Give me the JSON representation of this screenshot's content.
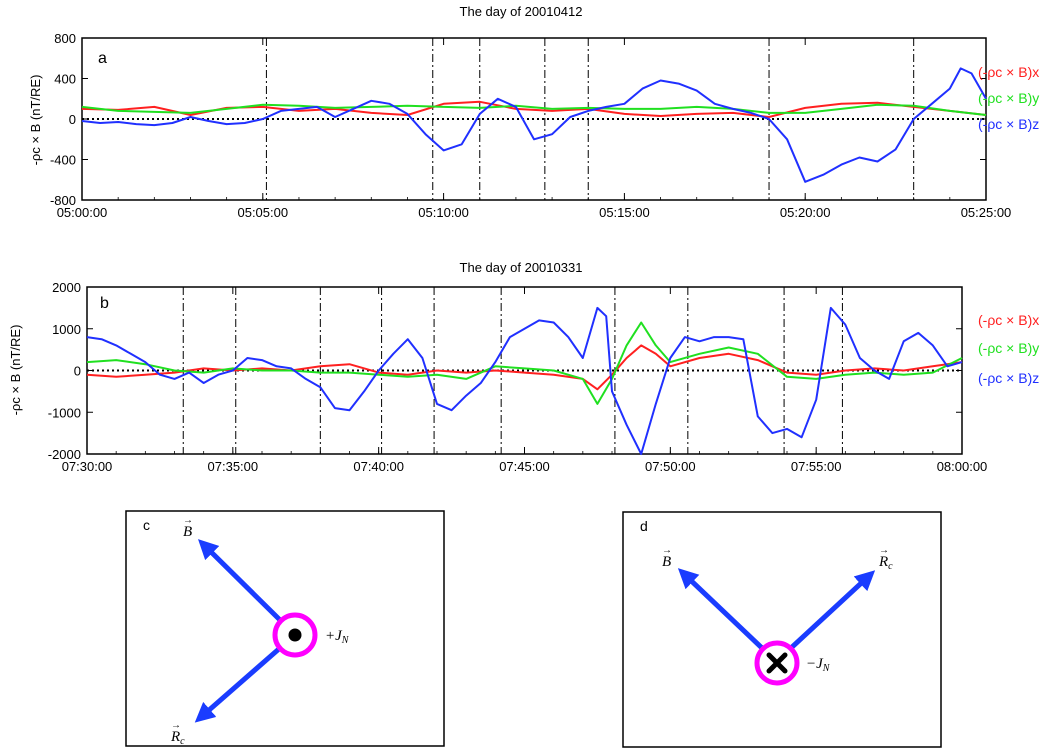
{
  "chart_data": [
    {
      "type": "line",
      "panel_label": "a",
      "title": "The day of 20010412",
      "ylabel": "-ρc × B (nT/RE)",
      "ylim": [
        -800,
        800
      ],
      "yticks": [
        "800",
        "400",
        "0",
        "-400",
        "-800"
      ],
      "ytick_values": [
        800,
        400,
        0,
        -400,
        -800
      ],
      "xlim_minutes": [
        0,
        25
      ],
      "xticks": [
        "05:00:00",
        "05:05:00",
        "05:10:00",
        "05:15:00",
        "05:20:00",
        "05:25:00"
      ],
      "xtick_minutes": [
        0,
        5,
        10,
        15,
        20,
        25
      ],
      "boundary_minutes": [
        5.1,
        9.7,
        11.0,
        12.8,
        14.0,
        19.0,
        23.0
      ],
      "zero_line": true,
      "legend_position": "right",
      "series": [
        {
          "name": "(-ρc × B)x",
          "color": "#ff2020",
          "x": [
            0,
            1,
            2,
            3,
            4,
            5,
            6,
            7,
            8,
            9,
            10,
            11,
            12,
            13,
            14,
            15,
            16,
            17,
            18,
            19,
            20,
            21,
            22,
            23,
            24,
            25
          ],
          "y": [
            100,
            90,
            120,
            40,
            110,
            120,
            80,
            100,
            60,
            40,
            150,
            170,
            100,
            80,
            100,
            50,
            30,
            50,
            60,
            20,
            110,
            150,
            160,
            120,
            80,
            40
          ]
        },
        {
          "name": "(-ρc × B)y",
          "color": "#20e020",
          "x": [
            0,
            1,
            2,
            3,
            4,
            5,
            6,
            7,
            8,
            9,
            10,
            11,
            12,
            13,
            14,
            15,
            16,
            17,
            18,
            19,
            20,
            21,
            22,
            23,
            24,
            25
          ],
          "y": [
            120,
            80,
            70,
            60,
            100,
            140,
            130,
            110,
            120,
            130,
            120,
            110,
            130,
            100,
            110,
            100,
            100,
            120,
            100,
            60,
            60,
            100,
            140,
            130,
            80,
            40
          ]
        },
        {
          "name": "(-ρc × B)z",
          "color": "#2030ff",
          "x": [
            0,
            0.5,
            1,
            1.5,
            2,
            2.5,
            3,
            3.5,
            4,
            4.5,
            5,
            5.5,
            6,
            6.5,
            7,
            7.5,
            8,
            8.5,
            9,
            9.5,
            10,
            10.5,
            11,
            11.5,
            12,
            12.5,
            13,
            13.5,
            14,
            14.5,
            15,
            15.5,
            16,
            16.5,
            17,
            17.5,
            18,
            18.5,
            19,
            19.5,
            20,
            20.5,
            21,
            21.5,
            22,
            22.5,
            23,
            23.5,
            24,
            24.3,
            24.6,
            25
          ],
          "y": [
            -20,
            -40,
            -30,
            -50,
            -60,
            -40,
            20,
            -20,
            -50,
            -40,
            0,
            80,
            100,
            120,
            20,
            100,
            180,
            150,
            50,
            -150,
            -310,
            -250,
            50,
            200,
            120,
            -200,
            -150,
            20,
            80,
            120,
            150,
            300,
            380,
            350,
            280,
            150,
            100,
            60,
            0,
            -200,
            -620,
            -550,
            -450,
            -380,
            -420,
            -300,
            0,
            150,
            300,
            500,
            450,
            200
          ]
        }
      ]
    },
    {
      "type": "line",
      "panel_label": "b",
      "title": "The day of 20010331",
      "ylabel": "-ρc × B (nT/RE)",
      "ylim": [
        -2000,
        2000
      ],
      "yticks": [
        "2000",
        "1000",
        "0",
        "-1000",
        "-2000"
      ],
      "ytick_values": [
        2000,
        1000,
        0,
        -1000,
        -2000
      ],
      "xlim_minutes": [
        0,
        30
      ],
      "xticks": [
        "07:30:00",
        "07:35:00",
        "07:40:00",
        "07:45:00",
        "07:50:00",
        "07:55:00",
        "08:00:00"
      ],
      "xtick_minutes": [
        0,
        5,
        10,
        15,
        20,
        25,
        30
      ],
      "boundary_minutes": [
        3.3,
        5.1,
        8.0,
        10.1,
        11.9,
        14.2,
        18.1,
        20.6,
        23.9,
        25.9
      ],
      "zero_line": true,
      "legend_position": "right",
      "series": [
        {
          "name": "(-ρc × B)x",
          "color": "#ff2020",
          "x": [
            0,
            1,
            2,
            3,
            4,
            5,
            6,
            7,
            8,
            9,
            10,
            11,
            12,
            13,
            14,
            15,
            16,
            17,
            17.5,
            18,
            18.5,
            19,
            19.5,
            20,
            21,
            22,
            23,
            24,
            25,
            26,
            27,
            28,
            29,
            30
          ],
          "y": [
            -100,
            -150,
            -100,
            -50,
            50,
            0,
            50,
            0,
            100,
            150,
            -50,
            -100,
            0,
            -50,
            0,
            -50,
            -100,
            -200,
            -450,
            -100,
            300,
            600,
            400,
            100,
            300,
            400,
            250,
            -50,
            -100,
            0,
            50,
            0,
            100,
            200
          ]
        },
        {
          "name": "(-ρc × B)y",
          "color": "#20e020",
          "x": [
            0,
            1,
            2,
            3,
            4,
            5,
            6,
            7,
            8,
            9,
            10,
            11,
            12,
            13,
            14,
            15,
            16,
            17,
            17.5,
            18,
            18.5,
            19,
            19.5,
            20,
            21,
            22,
            23,
            24,
            25,
            26,
            27,
            28,
            29,
            30
          ],
          "y": [
            200,
            250,
            150,
            0,
            -50,
            50,
            0,
            0,
            -50,
            -50,
            -100,
            -150,
            -100,
            -200,
            100,
            50,
            0,
            -200,
            -800,
            -200,
            600,
            1150,
            600,
            200,
            400,
            550,
            400,
            -150,
            -200,
            -100,
            -50,
            -100,
            -50,
            300
          ]
        },
        {
          "name": "(-ρc × B)z",
          "color": "#2030ff",
          "x": [
            0,
            0.5,
            1,
            1.5,
            2,
            2.5,
            3,
            3.5,
            4,
            4.5,
            5,
            5.5,
            6,
            6.5,
            7,
            7.5,
            8,
            8.5,
            9,
            9.5,
            10,
            10.5,
            11,
            11.5,
            12,
            12.5,
            13,
            13.5,
            14,
            14.5,
            15,
            15.5,
            16,
            16.5,
            17,
            17.5,
            17.8,
            18,
            18.5,
            19,
            19.5,
            20,
            20.5,
            21,
            21.5,
            22,
            22.5,
            23,
            23.5,
            24,
            24.5,
            25,
            25.5,
            26,
            26.5,
            27,
            27.5,
            28,
            28.5,
            29,
            29.5,
            30
          ],
          "y": [
            800,
            750,
            600,
            400,
            200,
            -100,
            -200,
            -50,
            -300,
            -100,
            0,
            300,
            250,
            100,
            50,
            -200,
            -400,
            -900,
            -950,
            -500,
            0,
            400,
            750,
            300,
            -800,
            -950,
            -600,
            -300,
            200,
            800,
            1000,
            1200,
            1150,
            800,
            300,
            1500,
            1300,
            -500,
            -1300,
            -2000,
            -800,
            300,
            800,
            700,
            800,
            800,
            750,
            -1100,
            -1500,
            -1400,
            -1600,
            -700,
            1500,
            1100,
            300,
            0,
            -200,
            700,
            900,
            600,
            100,
            200
          ]
        }
      ]
    }
  ],
  "schematics": [
    {
      "panel_label": "c",
      "b_label": "B",
      "r_label": "R",
      "r_sub": "c",
      "current_label": "+J",
      "current_sub": "N",
      "current_symbol": "dot"
    },
    {
      "panel_label": "d",
      "b_label": "B",
      "r_label": "R",
      "r_sub": "c",
      "current_label": "−J",
      "current_sub": "N",
      "current_symbol": "cross"
    }
  ],
  "colors": {
    "ring": "#ff00ff",
    "arrow": "#1a3cff",
    "x": "#ff2020",
    "y": "#20e020",
    "z": "#2030ff"
  }
}
